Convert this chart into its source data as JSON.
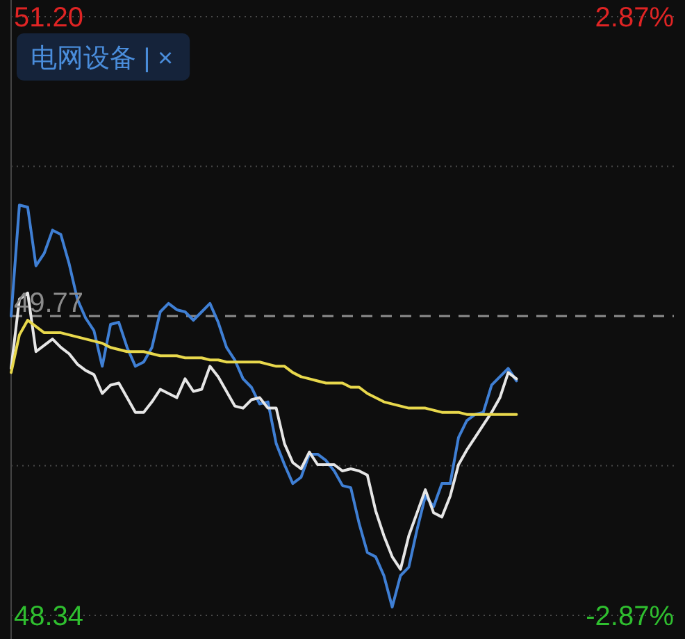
{
  "chart_data": {
    "type": "line",
    "title": "电网设备 | ×",
    "categories": [
      null,
      null,
      null,
      null,
      null,
      null,
      null,
      null,
      null,
      null,
      null,
      null,
      null,
      null,
      null,
      null,
      null,
      null,
      null,
      null,
      null,
      null,
      null,
      null,
      null,
      null,
      null,
      null,
      null,
      null,
      null,
      null,
      null,
      null,
      null,
      null,
      null,
      null,
      null,
      null,
      null,
      null,
      null,
      null,
      null,
      null,
      null,
      null,
      null,
      null,
      null,
      null,
      null,
      null,
      null,
      null,
      null,
      null,
      null,
      null,
      null,
      null,
      null,
      null,
      null,
      null,
      null,
      null,
      null,
      null,
      null,
      null,
      null,
      null,
      null,
      null,
      null,
      null,
      null,
      null,
      null
    ],
    "series": [
      {
        "color": "#3f7fd4",
        "values": [
          49.77,
          50.3,
          50.29,
          50.01,
          50.07,
          50.18,
          50.16,
          50.02,
          49.85,
          49.76,
          49.7,
          49.53,
          49.73,
          49.74,
          49.62,
          49.53,
          49.55,
          49.62,
          49.79,
          49.83,
          49.8,
          49.79,
          49.75,
          49.79,
          49.83,
          49.74,
          49.62,
          49.56,
          49.47,
          49.43,
          49.35,
          49.36,
          49.16,
          49.06,
          48.97,
          49.0,
          49.11,
          49.11,
          49.08,
          49.03,
          48.96,
          48.95,
          48.78,
          48.64,
          48.62,
          48.53,
          48.38,
          48.53,
          48.57,
          48.75,
          48.91,
          48.86,
          48.97,
          48.97,
          49.19,
          49.27,
          49.3,
          49.31,
          49.44,
          49.48,
          49.52,
          49.46,
          null,
          null,
          null,
          null,
          null,
          null,
          null,
          null,
          null,
          null,
          null,
          null,
          null,
          null,
          null,
          null,
          null,
          null,
          null
        ]
      },
      {
        "color": "#e6e6e6",
        "values": [
          49.52,
          49.85,
          49.88,
          49.6,
          49.63,
          49.66,
          49.62,
          49.59,
          49.54,
          49.51,
          49.49,
          49.4,
          49.44,
          49.45,
          49.38,
          49.31,
          49.31,
          49.36,
          49.42,
          49.4,
          49.38,
          49.47,
          49.41,
          49.42,
          49.53,
          49.48,
          49.41,
          49.34,
          49.33,
          49.37,
          49.38,
          49.33,
          49.33,
          49.16,
          49.07,
          49.04,
          49.12,
          49.06,
          49.06,
          49.06,
          49.03,
          49.04,
          49.03,
          49.01,
          48.84,
          48.72,
          48.62,
          48.56,
          48.72,
          48.83,
          48.94,
          48.83,
          48.81,
          48.91,
          49.06,
          49.13,
          49.19,
          49.25,
          49.31,
          49.38,
          49.5,
          49.47,
          null,
          null,
          null,
          null,
          null,
          null,
          null,
          null,
          null,
          null,
          null,
          null,
          null,
          null,
          null,
          null,
          null,
          null,
          null
        ]
      },
      {
        "color": "#e8d84c",
        "values": [
          49.5,
          49.68,
          49.75,
          49.72,
          49.69,
          49.69,
          49.69,
          49.68,
          49.67,
          49.66,
          49.65,
          49.64,
          49.62,
          49.61,
          49.6,
          49.6,
          49.6,
          49.59,
          49.58,
          49.58,
          49.58,
          49.57,
          49.57,
          49.57,
          49.56,
          49.56,
          49.55,
          49.55,
          49.55,
          49.55,
          49.55,
          49.54,
          49.53,
          49.53,
          49.5,
          49.48,
          49.47,
          49.46,
          49.45,
          49.45,
          49.45,
          49.43,
          49.43,
          49.4,
          49.38,
          49.36,
          49.35,
          49.34,
          49.33,
          49.33,
          49.33,
          49.32,
          49.31,
          49.31,
          49.31,
          49.3,
          49.3,
          49.3,
          49.3,
          49.3,
          49.3,
          49.3,
          null,
          null,
          null,
          null,
          null,
          null,
          null,
          null,
          null,
          null,
          null,
          null,
          null,
          null,
          null,
          null,
          null,
          null,
          null
        ]
      }
    ],
    "ylim": [
      48.34,
      51.2
    ],
    "yticks": [
      {
        "value": 51.2,
        "label": "51.20"
      },
      {
        "value": 50.485,
        "label": null
      },
      {
        "value": 49.77,
        "label": "49.77"
      },
      {
        "value": 49.055,
        "label": null
      },
      {
        "value": 48.34,
        "label": "48.34"
      }
    ],
    "y2lim": [
      -2.87,
      2.87
    ],
    "y2ticks": [
      {
        "value": 2.87,
        "label": "2.87%"
      },
      {
        "value": -2.87,
        "label": "-2.87%"
      }
    ],
    "ref_lines": [
      {
        "axis": "y",
        "value": 49.77,
        "line_style": "dashed",
        "color": "#8c8c8c"
      }
    ],
    "grid": "y",
    "line_style": "solid"
  }
}
